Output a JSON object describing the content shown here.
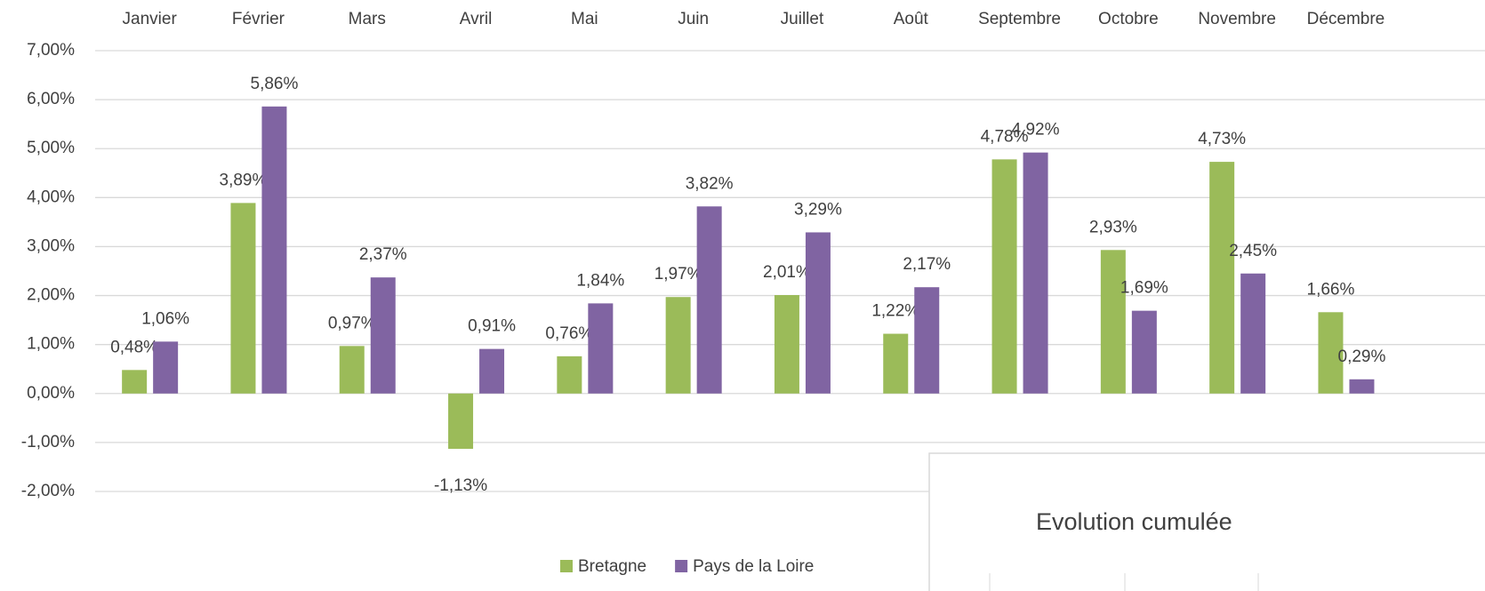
{
  "chart_data": {
    "type": "bar",
    "categories": [
      "Janvier",
      "Février",
      "Mars",
      "Avril",
      "Mai",
      "Juin",
      "Juillet",
      "Août",
      "Septembre",
      "Octobre",
      "Novembre",
      "Décembre"
    ],
    "series": [
      {
        "name": "Bretagne",
        "color": "#9bbb59",
        "values": [
          0.48,
          3.89,
          0.97,
          -1.13,
          0.76,
          1.97,
          2.01,
          1.22,
          4.78,
          2.93,
          4.73,
          1.66
        ],
        "value_labels": [
          "0,48%",
          "3,89%",
          "0,97%",
          "-1,13%",
          "0,76%",
          "1,97%",
          "2,01%",
          "1,22%",
          "4,78%",
          "2,93%",
          "4,73%",
          "1,66%"
        ]
      },
      {
        "name": "Pays de la Loire",
        "color": "#8064a2",
        "values": [
          1.06,
          5.86,
          2.37,
          0.91,
          1.84,
          3.82,
          3.29,
          2.17,
          4.92,
          1.69,
          2.45,
          0.29
        ],
        "value_labels": [
          "1,06%",
          "5,86%",
          "2,37%",
          "0,91%",
          "1,84%",
          "3,82%",
          "3,29%",
          "2,17%",
          "4,92%",
          "1,69%",
          "2,45%",
          "0,29%"
        ]
      }
    ],
    "ylim": [
      -2,
      7
    ],
    "yticks": [
      {
        "value": -2,
        "label": "-2,00%"
      },
      {
        "value": -1,
        "label": "-1,00%"
      },
      {
        "value": 0,
        "label": "0,00%"
      },
      {
        "value": 1,
        "label": "1,00%"
      },
      {
        "value": 2,
        "label": "2,00%"
      },
      {
        "value": 3,
        "label": "3,00%"
      },
      {
        "value": 4,
        "label": "4,00%"
      },
      {
        "value": 5,
        "label": "5,00%"
      },
      {
        "value": 6,
        "label": "6,00%"
      },
      {
        "value": 7,
        "label": "7,00%"
      }
    ],
    "grid": true,
    "legend": "bottom",
    "overlay_title": "Evolution cumulée"
  }
}
